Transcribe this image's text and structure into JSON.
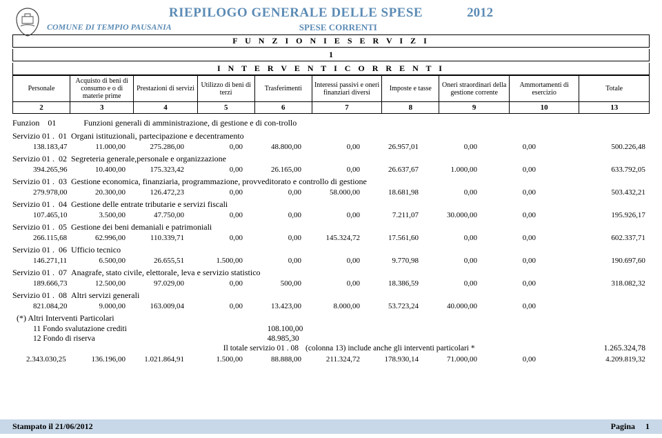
{
  "header": {
    "main_title": "RIEPILOGO GENERALE DELLE SPESE",
    "year": "2012",
    "comune": "COMUNE DI TEMPIO PAUSANIA",
    "subtitle": "SPESE CORRENTI",
    "box1": "F U N Z I O N I   E   S E R V I Z I",
    "box1_num": "1",
    "box2": "I N T E R V E N T I   C O R R E N T I"
  },
  "columns": [
    "Personale",
    "Acquisto di beni di consumo e o di materie prime",
    "Prestazioni di servizi",
    "Utilizzo di beni di terzi",
    "Trasferimenti",
    "Interessi passivi e oneri finanziari diversi",
    "Imposte e tasse",
    "Oneri straordinari della gestione corrente",
    "Ammortamenti di esercizio",
    "Totale"
  ],
  "colnums": [
    "2",
    "3",
    "4",
    "5",
    "6",
    "7",
    "8",
    "9",
    "10",
    "13"
  ],
  "funzione": {
    "label": "Funzion",
    "num": "01",
    "desc": "Funzioni generali di amministrazione, di gestione  e di con-trollo"
  },
  "servizi": [
    {
      "pre": "Servizio 01 .",
      "num": "01",
      "desc": "Organi istituzionali, partecipazione e decentramento",
      "vals": [
        "138.183,47",
        "11.000,00",
        "275.286,00",
        "0,00",
        "48.800,00",
        "0,00",
        "26.957,01",
        "0,00",
        "0,00",
        "500.226,48"
      ]
    },
    {
      "pre": "Servizio 01 .",
      "num": "02",
      "desc": "Segreteria generale,personale e organizzazione",
      "vals": [
        "394.265,96",
        "10.400,00",
        "175.323,42",
        "0,00",
        "26.165,00",
        "0,00",
        "26.637,67",
        "1.000,00",
        "0,00",
        "633.792,05"
      ]
    },
    {
      "pre": "Servizio 01 .",
      "num": "03",
      "desc": "Gestione economica, finanziaria, programmazione, provveditorato e controllo di gestione",
      "vals": [
        "279.978,00",
        "20.300,00",
        "126.472,23",
        "0,00",
        "0,00",
        "58.000,00",
        "18.681,98",
        "0,00",
        "0,00",
        "503.432,21"
      ]
    },
    {
      "pre": "Servizio 01 .",
      "num": "04",
      "desc": "Gestione delle entrate tributarie e servizi fiscali",
      "vals": [
        "107.465,10",
        "3.500,00",
        "47.750,00",
        "0,00",
        "0,00",
        "0,00",
        "7.211,07",
        "30.000,00",
        "0,00",
        "195.926,17"
      ]
    },
    {
      "pre": "Servizio 01 .",
      "num": "05",
      "desc": "Gestione dei beni demaniali e patrimoniali",
      "vals": [
        "266.115,68",
        "62.996,00",
        "110.339,71",
        "0,00",
        "0,00",
        "145.324,72",
        "17.561,60",
        "0,00",
        "0,00",
        "602.337,71"
      ]
    },
    {
      "pre": "Servizio 01 .",
      "num": "06",
      "desc": "Ufficio tecnico",
      "vals": [
        "146.271,11",
        "6.500,00",
        "26.655,51",
        "1.500,00",
        "0,00",
        "0,00",
        "9.770,98",
        "0,00",
        "0,00",
        "190.697,60"
      ]
    },
    {
      "pre": "Servizio 01 .",
      "num": "07",
      "desc": "Anagrafe, stato civile, elettorale, leva e servizio statistico",
      "vals": [
        "189.666,73",
        "12.500,00",
        "97.029,00",
        "0,00",
        "500,00",
        "0,00",
        "18.386,59",
        "0,00",
        "0,00",
        "318.082,32"
      ]
    },
    {
      "pre": "Servizio 01 .",
      "num": "08",
      "desc": "Altri servizi generali",
      "vals": [
        "821.084,20",
        "9.000,00",
        "163.009,04",
        "0,00",
        "13.423,00",
        "8.000,00",
        "53.723,24",
        "40.000,00",
        "0,00",
        ""
      ]
    }
  ],
  "extra": {
    "title": "(*) Altri Interventi Particolari",
    "rows": [
      {
        "num": "11",
        "desc": "Fondo svalutazione crediti",
        "val": "108.100,00"
      },
      {
        "num": "12",
        "desc": "Fondo di riserva",
        "val": "48.985,30"
      }
    ],
    "note_left": "Il totale servizio    01 .  08",
    "note_right": "(colonna 13) include anche gli interventi particolari *",
    "note_total": "1.265.324,78"
  },
  "funztotal": [
    "2.343.030,25",
    "136.196,00",
    "1.021.864,91",
    "1.500,00",
    "88.888,00",
    "211.324,72",
    "178.930,14",
    "71.000,00",
    "0,00",
    "4.209.819,32"
  ],
  "footer": {
    "stamp": "Stampato il 21/06/2012",
    "pagina_label": "Pagina",
    "pagina_num": "1"
  }
}
